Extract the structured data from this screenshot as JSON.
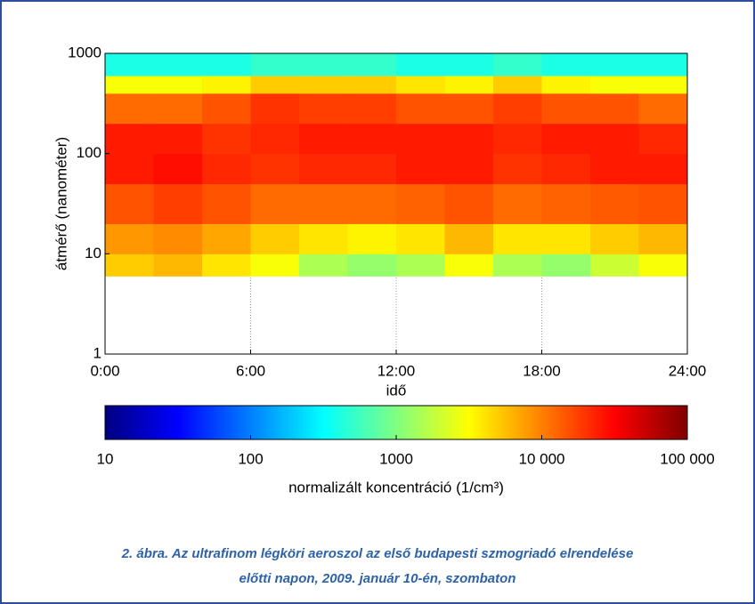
{
  "chart_data": {
    "type": "heatmap",
    "x": [
      0,
      2,
      4,
      6,
      8,
      10,
      12,
      14,
      16,
      18,
      20,
      22,
      24
    ],
    "y": [
      6,
      10,
      20,
      50,
      100,
      200,
      400,
      600,
      1000
    ],
    "z": [
      [
        5000,
        6000,
        4000,
        3000,
        1500,
        1200,
        1500,
        3000,
        1500,
        1200,
        2000,
        3000
      ],
      [
        8000,
        9000,
        7000,
        5000,
        4000,
        3500,
        4000,
        6000,
        4000,
        4000,
        5000,
        6000
      ],
      [
        15000,
        18000,
        15000,
        12000,
        12000,
        12000,
        13000,
        15000,
        12000,
        13000,
        14000,
        15000
      ],
      [
        25000,
        28000,
        22000,
        20000,
        22000,
        22000,
        25000,
        25000,
        20000,
        22000,
        25000,
        25000
      ],
      [
        25000,
        25000,
        20000,
        22000,
        25000,
        25000,
        25000,
        25000,
        22000,
        25000,
        25000,
        22000
      ],
      [
        12000,
        12000,
        15000,
        20000,
        18000,
        18000,
        15000,
        15000,
        18000,
        15000,
        15000,
        12000
      ],
      [
        3000,
        3000,
        3500,
        5000,
        5000,
        5000,
        4000,
        3500,
        5000,
        3500,
        3000,
        3000
      ],
      [
        400,
        400,
        400,
        500,
        500,
        500,
        400,
        400,
        500,
        400,
        400,
        400
      ]
    ],
    "xlabel": "idő",
    "ylabel": "átmérő (nanométer)",
    "xlim": [
      0,
      24
    ],
    "xticks": [
      {
        "value": 0,
        "label": "0:00"
      },
      {
        "value": 6,
        "label": "6:00"
      },
      {
        "value": 12,
        "label": "12:00"
      },
      {
        "value": 18,
        "label": "18:00"
      },
      {
        "value": 24,
        "label": "24:00"
      }
    ],
    "ylim": [
      1,
      1000
    ],
    "yticks": [
      1,
      10,
      100,
      1000
    ],
    "ylog": true,
    "grid": true,
    "colorbar": {
      "label": "normalizált koncentráció (1/cm³)",
      "lim": [
        10,
        100000
      ],
      "log": true,
      "ticks": [
        10,
        100,
        1000,
        {
          "value": 10000,
          "label": "10 000"
        },
        {
          "value": 100000,
          "label": "100 000"
        }
      ]
    }
  },
  "caption": [
    "2. ábra. Az ultrafinom légköri aeroszol az első budapesti szmogriadó elrendelése",
    "előtti napon, 2009. január 10-én, szombaton"
  ]
}
